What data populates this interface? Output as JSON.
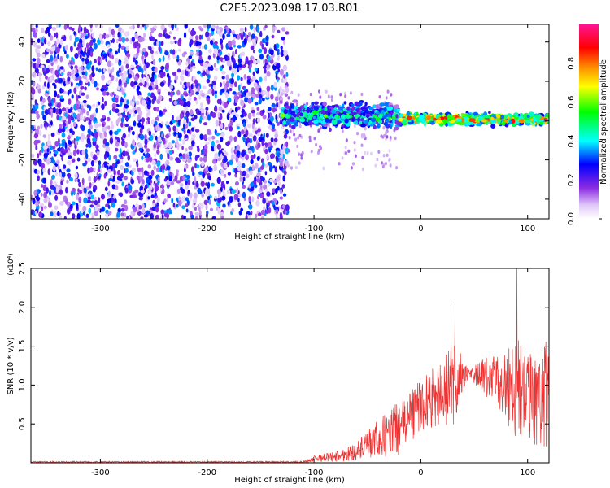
{
  "title": "C2E5.2023.098.17.03.R01",
  "chart_data": [
    {
      "type": "heatmap",
      "xlabel": "Height of straight line (km)",
      "ylabel": "Frequency (Hz)",
      "xlim": [
        -365,
        120
      ],
      "ylim": [
        -50,
        49
      ],
      "xticks": [
        -300,
        -200,
        -100,
        0,
        100
      ],
      "yticks": [
        -40,
        -20,
        0,
        20,
        40
      ],
      "colorbar": {
        "label": "Normalized spectral amplitude",
        "range": [
          0,
          1
        ],
        "ticks": [
          0.0,
          0.2,
          0.4,
          0.6,
          0.8
        ],
        "colors": [
          "#ffffff",
          "#e0c8f8",
          "#8a2be2",
          "#0000ff",
          "#00ffff",
          "#00ff00",
          "#ffff00",
          "#ff8c00",
          "#ff0000",
          "#ff1493"
        ]
      },
      "regions": [
        {
          "x": [
            -365,
            -125
          ],
          "frequency_range": [
            -50,
            49
          ],
          "amplitude": "0.1-0.35 (broadband noise)"
        },
        {
          "x": [
            -130,
            -20
          ],
          "frequency_center": 3,
          "frequency_halfwidth": 8,
          "amplitude": "0.2-0.6"
        },
        {
          "x": [
            -20,
            120
          ],
          "frequency_center": 1,
          "frequency_halfwidth": 4,
          "amplitude": "0.4-1.0"
        }
      ]
    },
    {
      "type": "line",
      "xlabel": "Height of straight line (km)",
      "ylabel": "SNR (10 * v/v)",
      "y_multiplier": "(x10⁴)",
      "xlim": [
        -365,
        120
      ],
      "ylim": [
        0,
        2.5
      ],
      "xticks": [
        -300,
        -200,
        -100,
        0,
        100
      ],
      "yticks": [
        0.5,
        1.0,
        1.5,
        2.0,
        2.5
      ],
      "series": [
        {
          "color": "#ee3333",
          "envelope": [
            {
              "x": -365,
              "mean": 0.01,
              "spread": 0.01
            },
            {
              "x": -110,
              "mean": 0.01,
              "spread": 0.01
            },
            {
              "x": -100,
              "mean": 0.05,
              "spread": 0.04
            },
            {
              "x": -80,
              "mean": 0.08,
              "spread": 0.07
            },
            {
              "x": -60,
              "mean": 0.15,
              "spread": 0.12
            },
            {
              "x": -40,
              "mean": 0.3,
              "spread": 0.25
            },
            {
              "x": -20,
              "mean": 0.45,
              "spread": 0.35
            },
            {
              "x": 0,
              "mean": 0.75,
              "spread": 0.35
            },
            {
              "x": 20,
              "mean": 0.9,
              "spread": 0.4
            },
            {
              "x": 30,
              "mean": 1.0,
              "spread": 0.6
            },
            {
              "x": 38,
              "mean": 1.12,
              "spread": 0.3
            },
            {
              "x": 45,
              "mean": 1.15,
              "spread": 0.05
            },
            {
              "x": 60,
              "mean": 1.1,
              "spread": 0.25
            },
            {
              "x": 80,
              "mean": 1.0,
              "spread": 0.45
            },
            {
              "x": 90,
              "mean": 0.95,
              "spread": 0.8
            },
            {
              "x": 100,
              "mean": 0.8,
              "spread": 0.6
            },
            {
              "x": 120,
              "mean": 0.9,
              "spread": 0.7
            }
          ],
          "peaks": [
            {
              "x": 32,
              "y": 2.05
            },
            {
              "x": 90,
              "y": 2.5
            }
          ]
        }
      ]
    }
  ]
}
